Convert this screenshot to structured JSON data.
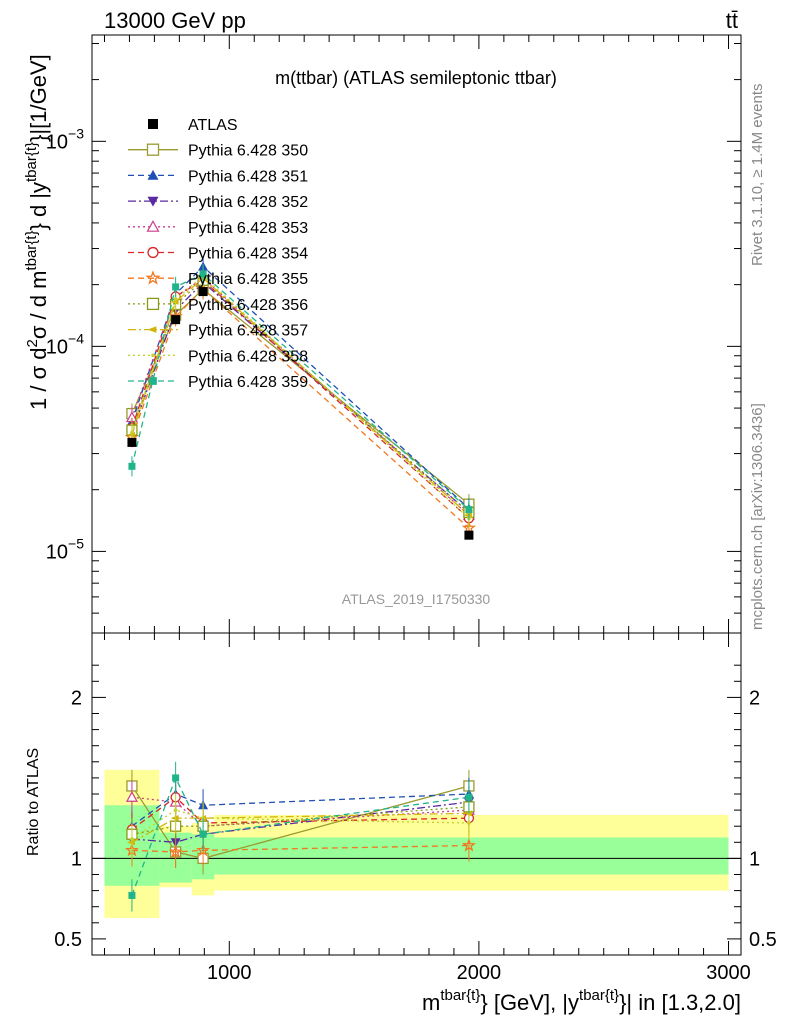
{
  "header": {
    "left": "13000 GeV pp",
    "right": "tt̄"
  },
  "side_texts": {
    "rivet": "Rivet 3.1.10, ≥ 1.4M events",
    "mcplots": "mcplots.cern.ch [arXiv:1306.3436]"
  },
  "chart_data": {
    "type": "line",
    "title": "m(ttbar) (ATLAS semileptonic ttbar)",
    "analysis_label": "ATLAS_2019_I1750330",
    "xlabel": {
      "main": "m",
      "sup1": "tbar{t}",
      "mid": "} [GeV], |y",
      "sup2": "tbar{t}",
      "end": "}| in [1.3,2.0]"
    },
    "ylabel": {
      "a": "1 / σ d",
      "b": "2",
      "c": "σ / d m",
      "d": "tbar{t}",
      "e": "} d |y",
      "f": "tbar{t}",
      "g": "}|[1/GeV]"
    },
    "ratio_ylabel": "Ratio to ATLAS",
    "xlim": [
      450,
      3050
    ],
    "ylim": [
      4e-06,
      0.0033
    ],
    "ratio_ylim": [
      0.4,
      2.4
    ],
    "y_scale": "log",
    "x_ticks": [
      1000,
      2000,
      3000
    ],
    "x_tick_labels": [
      "1000",
      "2000",
      "3000"
    ],
    "y_ticks": [
      1e-05,
      0.0001,
      0.001
    ],
    "y_tick_labels": [
      {
        "base": "10",
        "exp": "−5"
      },
      {
        "base": "10",
        "exp": "−4"
      },
      {
        "base": "10",
        "exp": "−3"
      }
    ],
    "ratio_ticks": [
      0.5,
      1,
      2
    ],
    "ratio_tick_labels": [
      "0.5",
      "1",
      "2"
    ],
    "x": [
      610,
      785,
      895,
      1960
    ],
    "bin_edges": [
      500,
      720,
      850,
      940,
      3000
    ],
    "data": {
      "name": "ATLAS",
      "values": [
        3.4e-05,
        0.000135,
        0.000185,
        1.2e-05
      ],
      "band_inner": [
        [
          0.83,
          1.33
        ],
        [
          0.85,
          1.16
        ],
        [
          0.87,
          1.15
        ],
        [
          0.9,
          1.13
        ]
      ],
      "band_outer": [
        [
          0.63,
          1.55
        ],
        [
          0.82,
          1.2
        ],
        [
          0.77,
          1.22
        ],
        [
          0.8,
          1.27
        ]
      ]
    },
    "series": [
      {
        "name": "Pythia 6.428 350",
        "color": "#9a9a2e",
        "marker": "square-open",
        "dash": "",
        "values": [
          4.7e-05,
          0.000142,
          0.00019,
          1.7e-05
        ],
        "ratio": [
          1.45,
          1.04,
          1.0,
          1.45
        ]
      },
      {
        "name": "Pythia 6.428 351",
        "color": "#1f4fb5",
        "marker": "triangle-up",
        "dash": "6,4",
        "values": [
          4.3e-05,
          0.00018,
          0.000245,
          1.62e-05
        ],
        "ratio": [
          1.2,
          1.4,
          1.33,
          1.4
        ]
      },
      {
        "name": "Pythia 6.428 352",
        "color": "#5a2aa3",
        "marker": "triangle-down",
        "dash": "8,3,2,3",
        "values": [
          3.8e-05,
          0.00015,
          0.000205,
          1.55e-05
        ],
        "ratio": [
          1.12,
          1.1,
          1.15,
          1.35
        ]
      },
      {
        "name": "Pythia 6.428 353",
        "color": "#cc3c8a",
        "marker": "triangle-open",
        "dash": "2,3",
        "values": [
          4.5e-05,
          0.000175,
          0.000215,
          1.5e-05
        ],
        "ratio": [
          1.38,
          1.35,
          1.2,
          1.3
        ]
      },
      {
        "name": "Pythia 6.428 354",
        "color": "#d9262a",
        "marker": "circle-open",
        "dash": "6,4",
        "values": [
          4e-05,
          0.000175,
          0.00021,
          1.45e-05
        ],
        "ratio": [
          1.18,
          1.38,
          1.22,
          1.25
        ]
      },
      {
        "name": "Pythia 6.428 355",
        "color": "#f07820",
        "marker": "star",
        "dash": "6,4",
        "values": [
          3.6e-05,
          0.00014,
          0.00019,
          1.3e-05
        ],
        "ratio": [
          1.05,
          1.04,
          1.05,
          1.08
        ]
      },
      {
        "name": "Pythia 6.428 356",
        "color": "#8a9a1a",
        "marker": "square-open",
        "dash": "2,3",
        "values": [
          3.9e-05,
          0.00016,
          0.00021,
          1.55e-05
        ],
        "ratio": [
          1.15,
          1.2,
          1.2,
          1.32
        ]
      },
      {
        "name": "Pythia 6.428 357",
        "color": "#d4b40a",
        "marker": "triangle-left",
        "dash": "8,3,2,3",
        "values": [
          3.7e-05,
          0.000165,
          0.000215,
          1.5e-05
        ],
        "ratio": [
          1.1,
          1.25,
          1.25,
          1.28
        ]
      },
      {
        "name": "Pythia 6.428 358",
        "color": "#c2d42a",
        "marker": "dot",
        "dash": "2,3",
        "values": [
          3.8e-05,
          0.00017,
          0.00022,
          1.45e-05
        ],
        "ratio": [
          1.12,
          1.3,
          1.25,
          1.22
        ]
      },
      {
        "name": "Pythia 6.428 359",
        "color": "#20b48a",
        "marker": "square-filled",
        "dash": "6,4",
        "values": [
          2.6e-05,
          0.000195,
          0.000225,
          1.6e-05
        ],
        "ratio": [
          0.77,
          1.5,
          1.15,
          1.38
        ]
      }
    ]
  }
}
